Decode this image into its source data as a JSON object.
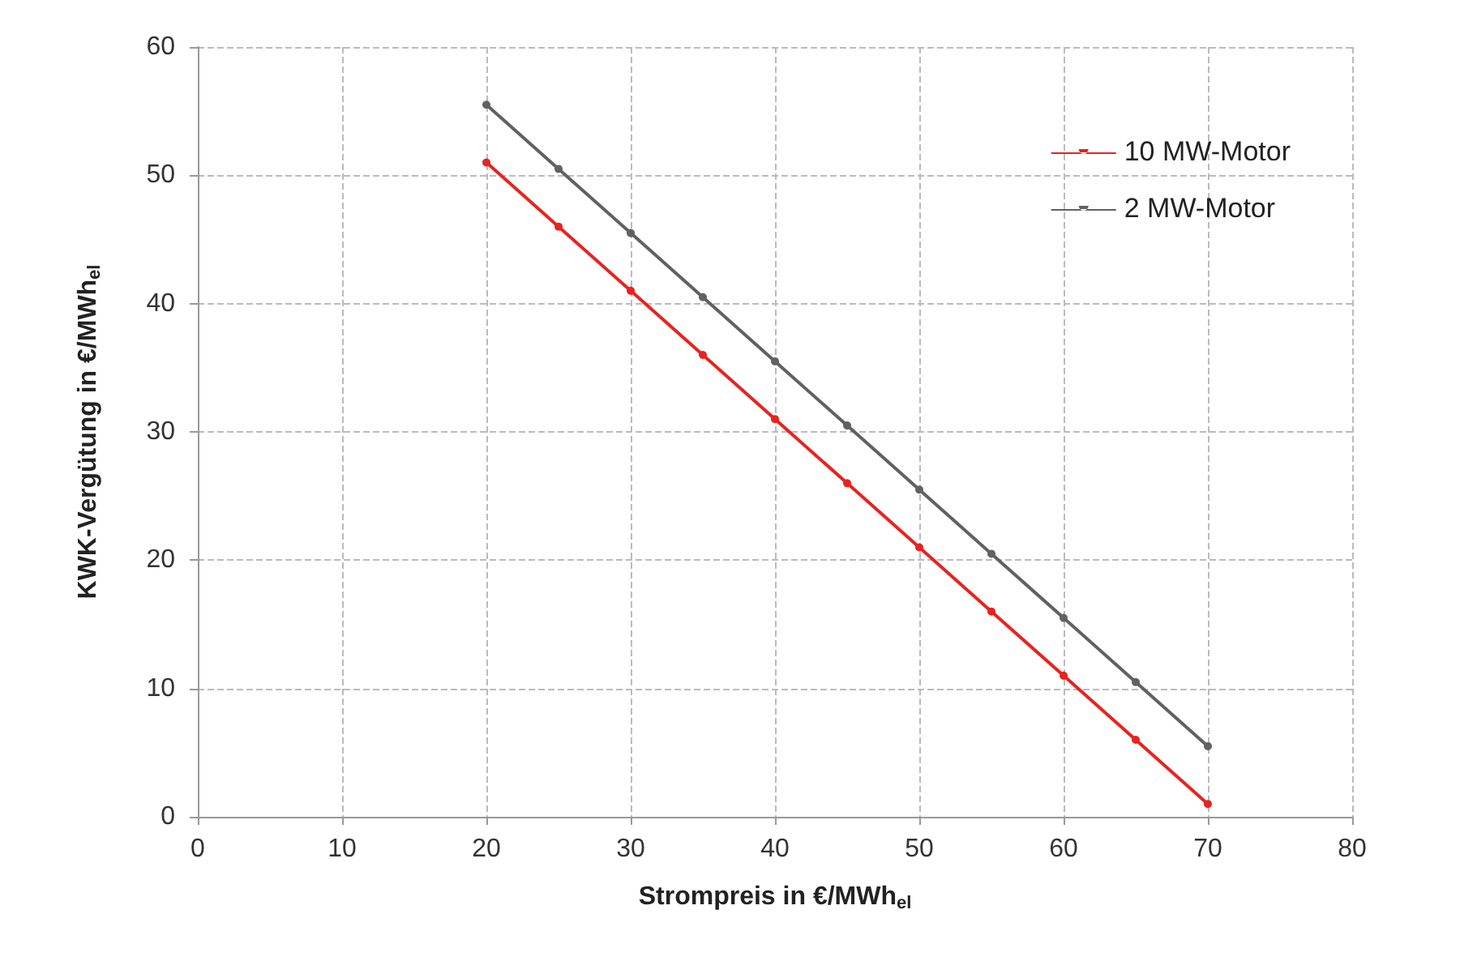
{
  "chart_data": {
    "type": "line",
    "xlabel": "Strompreis in €/MWh$_{el}$",
    "ylabel": "KWK-Vergütung in €/MWh$_{el}$",
    "x": [
      20,
      25,
      30,
      35,
      40,
      45,
      50,
      55,
      60,
      65,
      70
    ],
    "series": [
      {
        "name": "10 MW-Motor",
        "color": "#e8231f",
        "values": [
          51,
          46,
          41,
          36,
          31,
          26,
          21,
          16,
          11,
          6,
          1
        ]
      },
      {
        "name": "2 MW-Motor",
        "color": "#616161",
        "values": [
          55.5,
          50.5,
          45.5,
          40.5,
          35.5,
          30.5,
          25.5,
          20.5,
          15.5,
          10.5,
          5.5
        ]
      }
    ],
    "xlim": [
      0,
      80
    ],
    "xticks": [
      0,
      10,
      20,
      30,
      40,
      50,
      60,
      70,
      80
    ],
    "ylim": [
      0,
      60
    ],
    "yticks": [
      0,
      10,
      20,
      30,
      40,
      50,
      60
    ],
    "grid": true,
    "legend": "top right",
    "marker": "circle",
    "line_style": "solid"
  }
}
